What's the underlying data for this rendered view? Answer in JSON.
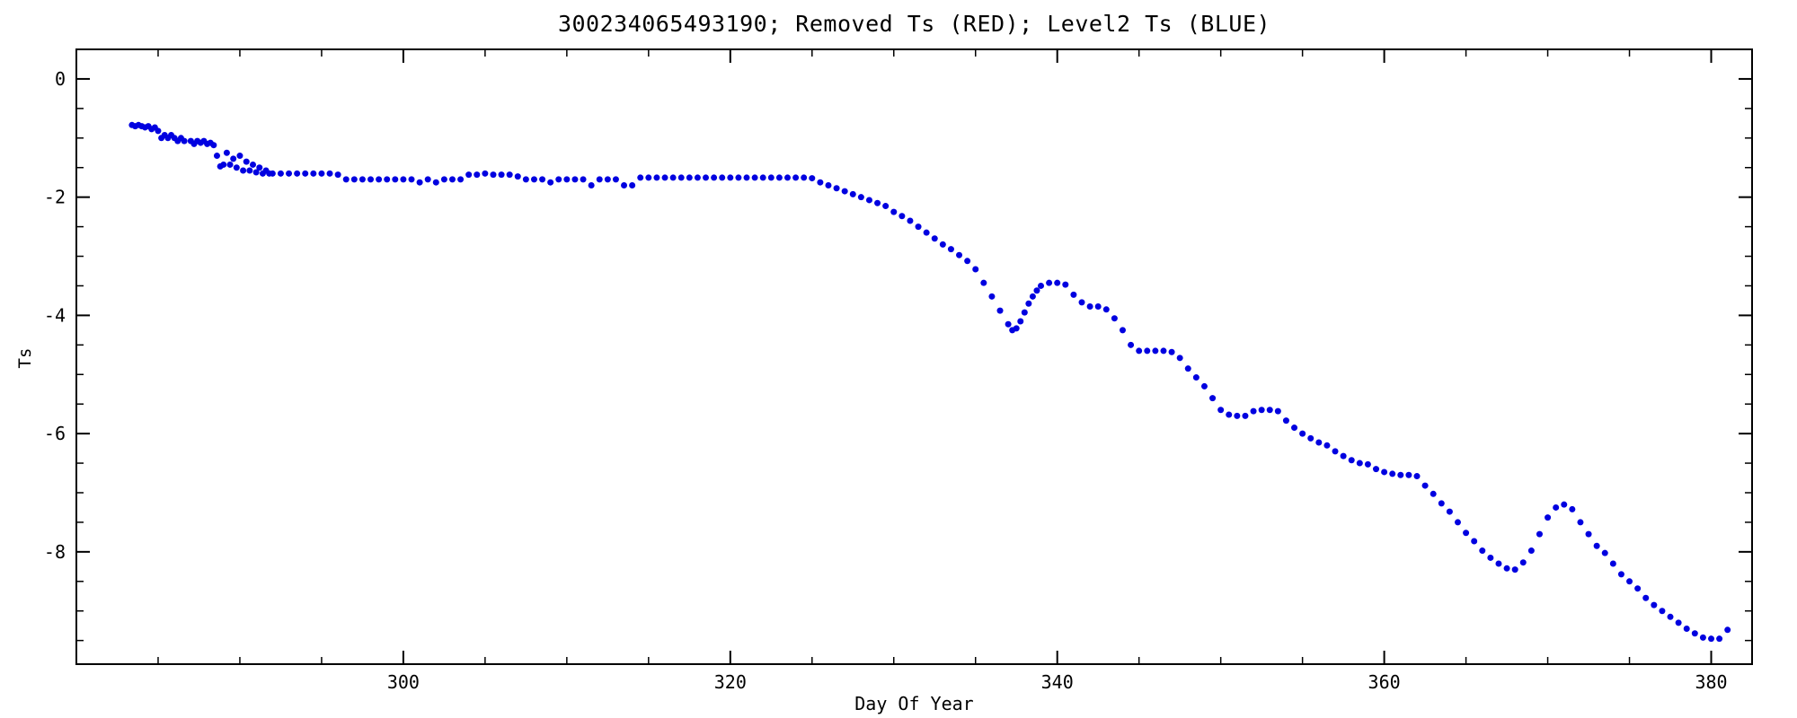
{
  "page": {
    "background_color": "#ffffff",
    "axis_color": "#000000"
  },
  "chart_data": {
    "type": "scatter",
    "title": "300234065493190; Removed Ts (RED); Level2 Ts (BLUE)",
    "xlabel": "Day Of Year",
    "ylabel": "Ts",
    "xlim": [
      280,
      382.5
    ],
    "ylim": [
      -9.9,
      0.5
    ],
    "grid": false,
    "legend_position": "none",
    "x_major_ticks": [
      300,
      320,
      340,
      360,
      380
    ],
    "x_tick_labels": [
      "300",
      "320",
      "340",
      "360",
      "380"
    ],
    "x_minor_interval": 5,
    "y_major_ticks": [
      0,
      -2,
      -4,
      -6,
      -8
    ],
    "y_tick_labels": [
      "0",
      "-2",
      "-4",
      "-6",
      "-8"
    ],
    "y_minor_interval": 0.5,
    "marker": "filled-circle",
    "marker_radius_px": 3.5,
    "series": [
      {
        "name": "Removed Ts",
        "color_name": "RED",
        "color": "#cc0000",
        "points": []
      },
      {
        "name": "Level2 Ts",
        "color_name": "BLUE",
        "color": "#0000e0",
        "points": [
          [
            283.4,
            -0.78
          ],
          [
            283.6,
            -0.8
          ],
          [
            283.8,
            -0.78
          ],
          [
            284.0,
            -0.8
          ],
          [
            284.2,
            -0.82
          ],
          [
            284.4,
            -0.8
          ],
          [
            284.6,
            -0.85
          ],
          [
            284.8,
            -0.82
          ],
          [
            285.0,
            -0.88
          ],
          [
            285.2,
            -1.0
          ],
          [
            285.4,
            -0.95
          ],
          [
            285.6,
            -1.0
          ],
          [
            285.8,
            -0.95
          ],
          [
            286.0,
            -1.0
          ],
          [
            286.2,
            -1.05
          ],
          [
            286.4,
            -1.0
          ],
          [
            286.6,
            -1.05
          ],
          [
            287.0,
            -1.05
          ],
          [
            287.2,
            -1.1
          ],
          [
            287.4,
            -1.05
          ],
          [
            287.6,
            -1.08
          ],
          [
            287.8,
            -1.05
          ],
          [
            288.0,
            -1.1
          ],
          [
            288.2,
            -1.08
          ],
          [
            288.4,
            -1.12
          ],
          [
            288.6,
            -1.3
          ],
          [
            288.8,
            -1.48
          ],
          [
            289.0,
            -1.45
          ],
          [
            289.2,
            -1.25
          ],
          [
            289.4,
            -1.45
          ],
          [
            289.6,
            -1.35
          ],
          [
            289.8,
            -1.5
          ],
          [
            290.0,
            -1.3
          ],
          [
            290.2,
            -1.55
          ],
          [
            290.4,
            -1.4
          ],
          [
            290.6,
            -1.55
          ],
          [
            290.8,
            -1.45
          ],
          [
            291.0,
            -1.58
          ],
          [
            291.2,
            -1.5
          ],
          [
            291.4,
            -1.6
          ],
          [
            291.6,
            -1.55
          ],
          [
            291.8,
            -1.6
          ],
          [
            292.0,
            -1.6
          ],
          [
            292.5,
            -1.6
          ],
          [
            293.0,
            -1.6
          ],
          [
            293.5,
            -1.6
          ],
          [
            294.0,
            -1.6
          ],
          [
            294.5,
            -1.6
          ],
          [
            295.0,
            -1.6
          ],
          [
            295.5,
            -1.6
          ],
          [
            296.0,
            -1.62
          ],
          [
            296.5,
            -1.7
          ],
          [
            297.0,
            -1.7
          ],
          [
            297.5,
            -1.7
          ],
          [
            298.0,
            -1.7
          ],
          [
            298.5,
            -1.7
          ],
          [
            299.0,
            -1.7
          ],
          [
            299.5,
            -1.7
          ],
          [
            300.0,
            -1.7
          ],
          [
            300.5,
            -1.7
          ],
          [
            301.0,
            -1.75
          ],
          [
            301.5,
            -1.7
          ],
          [
            302.0,
            -1.75
          ],
          [
            302.5,
            -1.7
          ],
          [
            303.0,
            -1.7
          ],
          [
            303.5,
            -1.7
          ],
          [
            304.0,
            -1.62
          ],
          [
            304.5,
            -1.62
          ],
          [
            305.0,
            -1.6
          ],
          [
            305.5,
            -1.62
          ],
          [
            306.0,
            -1.62
          ],
          [
            306.5,
            -1.62
          ],
          [
            307.0,
            -1.65
          ],
          [
            307.5,
            -1.7
          ],
          [
            308.0,
            -1.7
          ],
          [
            308.5,
            -1.7
          ],
          [
            309.0,
            -1.75
          ],
          [
            309.5,
            -1.7
          ],
          [
            310.0,
            -1.7
          ],
          [
            310.5,
            -1.7
          ],
          [
            311.0,
            -1.7
          ],
          [
            311.5,
            -1.8
          ],
          [
            312.0,
            -1.7
          ],
          [
            312.5,
            -1.7
          ],
          [
            313.0,
            -1.7
          ],
          [
            313.5,
            -1.8
          ],
          [
            314.0,
            -1.8
          ],
          [
            314.5,
            -1.67
          ],
          [
            315.0,
            -1.67
          ],
          [
            315.5,
            -1.67
          ],
          [
            316.0,
            -1.67
          ],
          [
            316.5,
            -1.67
          ],
          [
            317.0,
            -1.67
          ],
          [
            317.5,
            -1.67
          ],
          [
            318.0,
            -1.67
          ],
          [
            318.5,
            -1.67
          ],
          [
            319.0,
            -1.67
          ],
          [
            319.5,
            -1.67
          ],
          [
            320.0,
            -1.67
          ],
          [
            320.5,
            -1.67
          ],
          [
            321.0,
            -1.67
          ],
          [
            321.5,
            -1.67
          ],
          [
            322.0,
            -1.67
          ],
          [
            322.5,
            -1.67
          ],
          [
            323.0,
            -1.67
          ],
          [
            323.5,
            -1.67
          ],
          [
            324.0,
            -1.67
          ],
          [
            324.5,
            -1.67
          ],
          [
            325.0,
            -1.68
          ],
          [
            325.5,
            -1.75
          ],
          [
            326.0,
            -1.8
          ],
          [
            326.5,
            -1.85
          ],
          [
            327.0,
            -1.9
          ],
          [
            327.5,
            -1.95
          ],
          [
            328.0,
            -2.0
          ],
          [
            328.5,
            -2.05
          ],
          [
            329.0,
            -2.1
          ],
          [
            329.5,
            -2.15
          ],
          [
            330.0,
            -2.25
          ],
          [
            330.5,
            -2.32
          ],
          [
            331.0,
            -2.4
          ],
          [
            331.5,
            -2.5
          ],
          [
            332.0,
            -2.6
          ],
          [
            332.5,
            -2.7
          ],
          [
            333.0,
            -2.8
          ],
          [
            333.5,
            -2.88
          ],
          [
            334.0,
            -2.98
          ],
          [
            334.5,
            -3.08
          ],
          [
            335.0,
            -3.22
          ],
          [
            335.5,
            -3.45
          ],
          [
            336.0,
            -3.68
          ],
          [
            336.5,
            -3.92
          ],
          [
            337.0,
            -4.15
          ],
          [
            337.25,
            -4.25
          ],
          [
            337.5,
            -4.22
          ],
          [
            337.75,
            -4.1
          ],
          [
            338.0,
            -3.95
          ],
          [
            338.25,
            -3.8
          ],
          [
            338.5,
            -3.68
          ],
          [
            338.75,
            -3.58
          ],
          [
            339.0,
            -3.5
          ],
          [
            339.5,
            -3.45
          ],
          [
            340.0,
            -3.45
          ],
          [
            340.5,
            -3.48
          ],
          [
            341.0,
            -3.65
          ],
          [
            341.5,
            -3.78
          ],
          [
            342.0,
            -3.85
          ],
          [
            342.5,
            -3.85
          ],
          [
            343.0,
            -3.9
          ],
          [
            343.5,
            -4.05
          ],
          [
            344.0,
            -4.25
          ],
          [
            344.5,
            -4.5
          ],
          [
            345.0,
            -4.6
          ],
          [
            345.5,
            -4.6
          ],
          [
            346.0,
            -4.6
          ],
          [
            346.5,
            -4.6
          ],
          [
            347.0,
            -4.62
          ],
          [
            347.5,
            -4.72
          ],
          [
            348.0,
            -4.9
          ],
          [
            348.5,
            -5.05
          ],
          [
            349.0,
            -5.2
          ],
          [
            349.5,
            -5.4
          ],
          [
            350.0,
            -5.6
          ],
          [
            350.5,
            -5.68
          ],
          [
            351.0,
            -5.7
          ],
          [
            351.5,
            -5.7
          ],
          [
            352.0,
            -5.62
          ],
          [
            352.5,
            -5.6
          ],
          [
            353.0,
            -5.6
          ],
          [
            353.5,
            -5.62
          ],
          [
            354.0,
            -5.78
          ],
          [
            354.5,
            -5.9
          ],
          [
            355.0,
            -6.0
          ],
          [
            355.5,
            -6.08
          ],
          [
            356.0,
            -6.15
          ],
          [
            356.5,
            -6.2
          ],
          [
            357.0,
            -6.3
          ],
          [
            357.5,
            -6.38
          ],
          [
            358.0,
            -6.45
          ],
          [
            358.5,
            -6.5
          ],
          [
            359.0,
            -6.52
          ],
          [
            359.5,
            -6.6
          ],
          [
            360.0,
            -6.65
          ],
          [
            360.5,
            -6.68
          ],
          [
            361.0,
            -6.7
          ],
          [
            361.5,
            -6.7
          ],
          [
            362.0,
            -6.72
          ],
          [
            362.5,
            -6.88
          ],
          [
            363.0,
            -7.02
          ],
          [
            363.5,
            -7.18
          ],
          [
            364.0,
            -7.32
          ],
          [
            364.5,
            -7.5
          ],
          [
            365.0,
            -7.68
          ],
          [
            365.5,
            -7.82
          ],
          [
            366.0,
            -7.98
          ],
          [
            366.5,
            -8.1
          ],
          [
            367.0,
            -8.2
          ],
          [
            367.5,
            -8.28
          ],
          [
            368.0,
            -8.3
          ],
          [
            368.5,
            -8.18
          ],
          [
            369.0,
            -7.98
          ],
          [
            369.5,
            -7.7
          ],
          [
            370.0,
            -7.42
          ],
          [
            370.5,
            -7.25
          ],
          [
            371.0,
            -7.2
          ],
          [
            371.5,
            -7.28
          ],
          [
            372.0,
            -7.5
          ],
          [
            372.5,
            -7.7
          ],
          [
            373.0,
            -7.9
          ],
          [
            373.5,
            -8.02
          ],
          [
            374.0,
            -8.2
          ],
          [
            374.5,
            -8.38
          ],
          [
            375.0,
            -8.5
          ],
          [
            375.5,
            -8.62
          ],
          [
            376.0,
            -8.78
          ],
          [
            376.5,
            -8.9
          ],
          [
            377.0,
            -9.0
          ],
          [
            377.5,
            -9.1
          ],
          [
            378.0,
            -9.2
          ],
          [
            378.5,
            -9.3
          ],
          [
            379.0,
            -9.38
          ],
          [
            379.5,
            -9.45
          ],
          [
            380.0,
            -9.47
          ],
          [
            380.5,
            -9.47
          ],
          [
            381.0,
            -9.32
          ]
        ]
      }
    ]
  }
}
